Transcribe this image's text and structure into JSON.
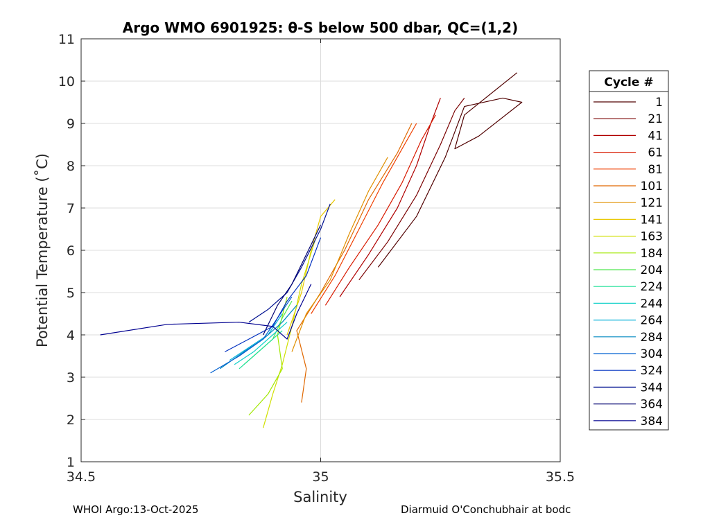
{
  "chart_data": {
    "type": "line",
    "title": "Argo WMO 6901925: θ-S below 500 dbar,  QC=(1,2)",
    "xlabel": "Salinity",
    "ylabel": "Potential Temperature (˚C)",
    "xlim": [
      34.5,
      35.5
    ],
    "ylim": [
      1,
      11
    ],
    "xticks": [
      34.5,
      35,
      35.5
    ],
    "xtick_labels": [
      "34.5",
      "35",
      "35.5"
    ],
    "yticks": [
      1,
      2,
      3,
      4,
      5,
      6,
      7,
      8,
      9,
      10,
      11
    ],
    "ytick_labels": [
      "1",
      "2",
      "3",
      "4",
      "5",
      "6",
      "7",
      "8",
      "9",
      "10",
      "11"
    ],
    "grid": true,
    "legend": {
      "title": "Cycle #",
      "position": "right-outside",
      "entries": [
        "1",
        "21",
        "41",
        "61",
        "81",
        "101",
        "121",
        "141",
        "163",
        "184",
        "204",
        "224",
        "244",
        "264",
        "284",
        "304",
        "324",
        "344",
        "364",
        "384"
      ],
      "colors": [
        "#500000",
        "#7a0000",
        "#b00000",
        "#d81a00",
        "#ef3f00",
        "#e06800",
        "#e09000",
        "#e8c800",
        "#d0e000",
        "#a0e800",
        "#50e850",
        "#20e098",
        "#10d0c8",
        "#00b0d8",
        "#0088c0",
        "#0060d0",
        "#0030c0",
        "#001090",
        "#000070",
        "#000090"
      ]
    },
    "series": [
      {
        "name": "1",
        "color": "#500000",
        "points": [
          [
            35.12,
            5.6
          ],
          [
            35.2,
            6.8
          ],
          [
            35.26,
            8.2
          ],
          [
            35.3,
            9.4
          ],
          [
            35.38,
            9.6
          ],
          [
            35.42,
            9.5
          ],
          [
            35.33,
            8.7
          ],
          [
            35.28,
            8.4
          ],
          [
            35.3,
            9.2
          ],
          [
            35.41,
            10.2
          ]
        ]
      },
      {
        "name": "21",
        "color": "#7a0000",
        "points": [
          [
            35.08,
            5.3
          ],
          [
            35.14,
            6.2
          ],
          [
            35.2,
            7.3
          ],
          [
            35.25,
            8.5
          ],
          [
            35.28,
            9.3
          ],
          [
            35.3,
            9.6
          ]
        ]
      },
      {
        "name": "41",
        "color": "#b00000",
        "points": [
          [
            35.04,
            4.9
          ],
          [
            35.1,
            5.9
          ],
          [
            35.16,
            7.0
          ],
          [
            35.2,
            8.0
          ],
          [
            35.23,
            9.0
          ],
          [
            35.25,
            9.6
          ]
        ]
      },
      {
        "name": "61",
        "color": "#d81a00",
        "points": [
          [
            35.01,
            4.7
          ],
          [
            35.06,
            5.6
          ],
          [
            35.12,
            6.6
          ],
          [
            35.17,
            7.6
          ],
          [
            35.21,
            8.6
          ],
          [
            35.24,
            9.2
          ]
        ]
      },
      {
        "name": "81",
        "color": "#ef3f00",
        "points": [
          [
            34.98,
            4.5
          ],
          [
            35.03,
            5.4
          ],
          [
            35.08,
            6.5
          ],
          [
            35.13,
            7.6
          ],
          [
            35.17,
            8.4
          ],
          [
            35.2,
            9.0
          ]
        ]
      },
      {
        "name": "101",
        "color": "#e06800",
        "points": [
          [
            34.96,
            2.4
          ],
          [
            34.97,
            3.2
          ],
          [
            34.95,
            4.1
          ],
          [
            35.0,
            5.0
          ],
          [
            35.05,
            6.0
          ],
          [
            35.1,
            7.2
          ],
          [
            35.16,
            8.3
          ],
          [
            35.19,
            9.0
          ]
        ]
      },
      {
        "name": "121",
        "color": "#e09000",
        "points": [
          [
            34.94,
            3.6
          ],
          [
            34.97,
            4.5
          ],
          [
            35.02,
            5.3
          ],
          [
            35.06,
            6.4
          ],
          [
            35.1,
            7.4
          ],
          [
            35.14,
            8.2
          ]
        ]
      },
      {
        "name": "141",
        "color": "#e8c800",
        "points": [
          [
            34.93,
            4.0
          ],
          [
            34.96,
            5.0
          ],
          [
            34.98,
            6.0
          ],
          [
            35.0,
            6.8
          ],
          [
            35.03,
            7.2
          ]
        ]
      },
      {
        "name": "163",
        "color": "#d0e000",
        "points": [
          [
            34.88,
            1.8
          ],
          [
            34.9,
            2.6
          ],
          [
            34.92,
            3.3
          ],
          [
            34.94,
            4.2
          ],
          [
            34.96,
            5.2
          ],
          [
            34.99,
            6.3
          ]
        ]
      },
      {
        "name": "184",
        "color": "#a0e800",
        "points": [
          [
            34.85,
            2.1
          ],
          [
            34.89,
            2.6
          ],
          [
            34.92,
            3.2
          ],
          [
            34.91,
            4.0
          ],
          [
            34.93,
            4.9
          ]
        ]
      },
      {
        "name": "204",
        "color": "#50e850",
        "points": [
          [
            34.84,
            3.3
          ],
          [
            34.87,
            3.6
          ],
          [
            34.9,
            3.9
          ],
          [
            34.92,
            4.4
          ],
          [
            34.94,
            4.8
          ]
        ]
      },
      {
        "name": "224",
        "color": "#20e098",
        "points": [
          [
            34.83,
            3.2
          ],
          [
            34.86,
            3.5
          ],
          [
            34.89,
            3.8
          ],
          [
            34.92,
            4.1
          ]
        ]
      },
      {
        "name": "244",
        "color": "#10d0c8",
        "points": [
          [
            34.82,
            3.3
          ],
          [
            34.86,
            3.6
          ],
          [
            34.9,
            4.0
          ],
          [
            34.93,
            4.3
          ]
        ]
      },
      {
        "name": "264",
        "color": "#00b0d8",
        "points": [
          [
            34.81,
            3.4
          ],
          [
            34.85,
            3.7
          ],
          [
            34.89,
            4.0
          ],
          [
            34.92,
            4.5
          ]
        ]
      },
      {
        "name": "284",
        "color": "#0088c0",
        "points": [
          [
            34.79,
            3.2
          ],
          [
            34.84,
            3.6
          ],
          [
            34.88,
            3.9
          ],
          [
            34.92,
            4.3
          ],
          [
            34.95,
            4.7
          ]
        ]
      },
      {
        "name": "304",
        "color": "#0060d0",
        "points": [
          [
            34.77,
            3.1
          ],
          [
            34.83,
            3.5
          ],
          [
            34.88,
            3.9
          ],
          [
            34.91,
            4.4
          ],
          [
            34.94,
            4.9
          ]
        ]
      },
      {
        "name": "324",
        "color": "#0030c0",
        "points": [
          [
            34.8,
            3.6
          ],
          [
            34.85,
            3.9
          ],
          [
            34.9,
            4.2
          ],
          [
            34.93,
            4.8
          ],
          [
            34.97,
            5.4
          ],
          [
            35.0,
            6.3
          ]
        ]
      },
      {
        "name": "344",
        "color": "#001090",
        "points": [
          [
            34.85,
            4.3
          ],
          [
            34.89,
            4.6
          ],
          [
            34.93,
            5.0
          ],
          [
            34.96,
            5.6
          ],
          [
            35.0,
            6.5
          ],
          [
            35.02,
            7.1
          ]
        ]
      },
      {
        "name": "364",
        "color": "#000070",
        "points": [
          [
            34.88,
            4.0
          ],
          [
            34.91,
            4.7
          ],
          [
            34.94,
            5.2
          ],
          [
            34.97,
            5.9
          ],
          [
            35.0,
            6.6
          ]
        ]
      },
      {
        "name": "384",
        "color": "#000090",
        "points": [
          [
            34.54,
            4.0
          ],
          [
            34.68,
            4.25
          ],
          [
            34.83,
            4.3
          ],
          [
            34.9,
            4.2
          ],
          [
            34.93,
            3.9
          ],
          [
            34.95,
            4.5
          ],
          [
            34.98,
            5.2
          ]
        ]
      }
    ]
  },
  "footer": {
    "left": "WHOI Argo:13-Oct-2025",
    "right": "Diarmuid O'Conchubhair at bodc"
  }
}
